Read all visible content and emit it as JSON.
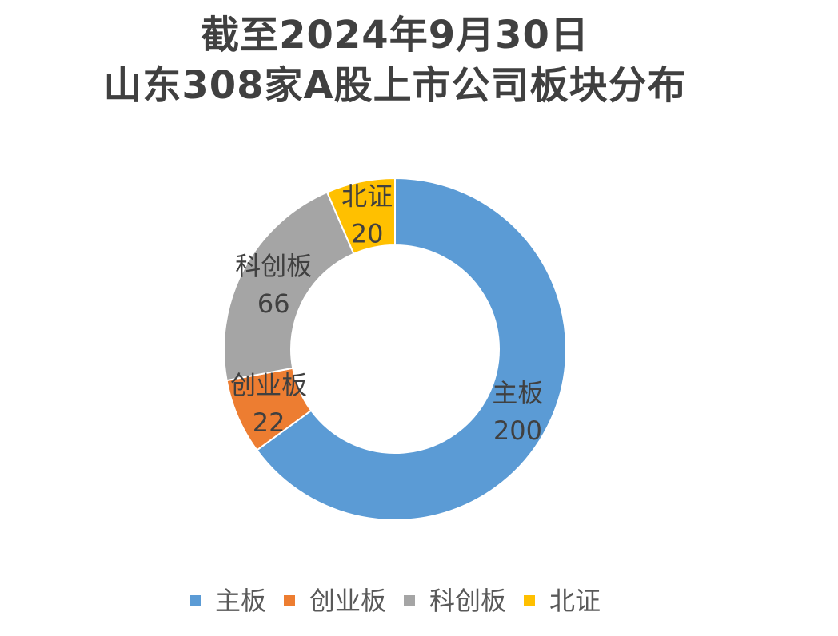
{
  "chart_data": {
    "type": "pie",
    "donut": true,
    "title": [
      "截至2024年9月30日",
      "山东308家A股上市公司板块分布"
    ],
    "categories": [
      "主板",
      "创业板",
      "科创板",
      "北证"
    ],
    "values": [
      200,
      22,
      66,
      20
    ],
    "colors": [
      "#5B9BD5",
      "#ED7D31",
      "#A5A5A5",
      "#FFC000"
    ],
    "show_data_labels": true,
    "legend_position": "bottom"
  }
}
